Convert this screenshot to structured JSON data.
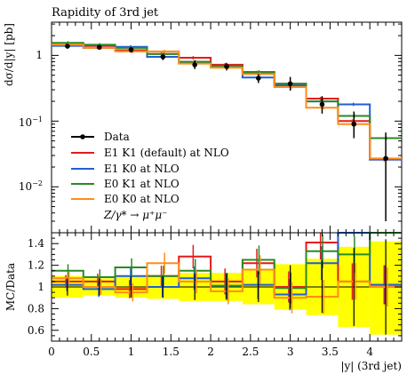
{
  "chart_data": [
    {
      "type": "line",
      "title": "Rapidity of 3rd jet",
      "xlabel": "|y| (3rd jet)",
      "ylabel": "dσ/d|y| [pb]",
      "yscale": "log",
      "xlim": [
        0,
        4.4
      ],
      "ylim": [
        0.002,
        3.2
      ],
      "x_edges": [
        0,
        0.4,
        0.8,
        1.2,
        1.6,
        2.0,
        2.4,
        2.8,
        3.2,
        3.6,
        4.0,
        4.4
      ],
      "xticks": [
        "0",
        "0.5",
        "1",
        "1.5",
        "2",
        "2.5",
        "3",
        "3.5",
        "4"
      ],
      "yticks": [
        "1",
        "10^-1",
        "10^-2"
      ],
      "data": {
        "name": "Data",
        "x": [
          0.2,
          0.6,
          1.0,
          1.4,
          1.8,
          2.2,
          2.6,
          3.0,
          3.4,
          3.8,
          4.2
        ],
        "y": [
          1.38,
          1.33,
          1.22,
          0.95,
          0.72,
          0.68,
          0.45,
          0.37,
          0.18,
          0.09,
          0.027
        ],
        "err_low": [
          0.1,
          0.1,
          0.12,
          0.1,
          0.1,
          0.09,
          0.07,
          0.08,
          0.05,
          0.035,
          0.024
        ],
        "err_high": [
          0.1,
          0.1,
          0.12,
          0.1,
          0.12,
          0.09,
          0.07,
          0.1,
          0.06,
          0.05,
          0.04
        ]
      },
      "series": [
        {
          "name": "E1 K1 (default) at NLO",
          "color": "#e41a1c",
          "values": [
            1.45,
            1.4,
            1.2,
            1.05,
            0.92,
            0.72,
            0.55,
            0.37,
            0.22,
            0.1,
            0.026
          ]
        },
        {
          "name": "E1 K0 at NLO",
          "color": "#1f5fd6",
          "values": [
            1.4,
            1.3,
            1.35,
            0.95,
            0.77,
            0.69,
            0.46,
            0.35,
            0.2,
            0.18,
            0.026
          ]
        },
        {
          "name": "E0 K1 at NLO",
          "color": "#2a8a24",
          "values": [
            1.55,
            1.45,
            1.3,
            1.05,
            0.8,
            0.69,
            0.56,
            0.37,
            0.2,
            0.12,
            0.055
          ]
        },
        {
          "name": "E0 K0 at NLO",
          "color": "#ff8c1a",
          "values": [
            1.45,
            1.3,
            1.15,
            1.15,
            0.75,
            0.65,
            0.52,
            0.33,
            0.16,
            0.09,
            0.027
          ]
        }
      ],
      "legend_extra": "Z/γ* → μ⁺μ⁻",
      "legend_position": "bottom-left"
    },
    {
      "type": "line",
      "title": "",
      "xlabel": "|y| (3rd jet)",
      "ylabel": "MC/Data",
      "xlim": [
        0,
        4.4
      ],
      "ylim": [
        0.5,
        1.5
      ],
      "yticks": [
        "0.6",
        "0.8",
        "1",
        "1.2",
        "1.4"
      ],
      "band_low": [
        0.9,
        0.92,
        0.9,
        0.89,
        0.87,
        0.87,
        0.84,
        0.79,
        0.74,
        0.63,
        0.56
      ],
      "band_high": [
        1.1,
        1.08,
        1.1,
        1.11,
        1.13,
        1.13,
        1.16,
        1.21,
        1.26,
        1.37,
        1.42
      ],
      "data_err": [
        0.08,
        0.08,
        0.1,
        0.1,
        0.12,
        0.12,
        0.14,
        0.2,
        0.24,
        0.36,
        0.44
      ],
      "series": [
        {
          "name": "E1 K1 (default) at NLO",
          "color": "#e41a1c",
          "values": [
            1.05,
            1.05,
            0.98,
            1.1,
            1.28,
            1.05,
            1.22,
            1.0,
            1.41,
            1.05,
            1.02
          ]
        },
        {
          "name": "E1 K0 at NLO",
          "color": "#1f5fd6",
          "values": [
            1.02,
            0.98,
            1.1,
            1.0,
            1.08,
            1.01,
            1.02,
            0.93,
            1.22,
            1.92,
            1.02
          ]
        },
        {
          "name": "E0 K1 at NLO",
          "color": "#2a8a24",
          "values": [
            1.15,
            1.09,
            1.18,
            1.1,
            1.15,
            1.01,
            1.25,
            0.99,
            1.33,
            1.3,
            2.0
          ]
        },
        {
          "name": "E0 K0 at NLO",
          "color": "#ff8c1a",
          "values": [
            1.08,
            1.0,
            0.95,
            1.22,
            1.05,
            0.96,
            1.16,
            0.9,
            0.91,
            1.05,
            1.0
          ]
        }
      ]
    }
  ]
}
